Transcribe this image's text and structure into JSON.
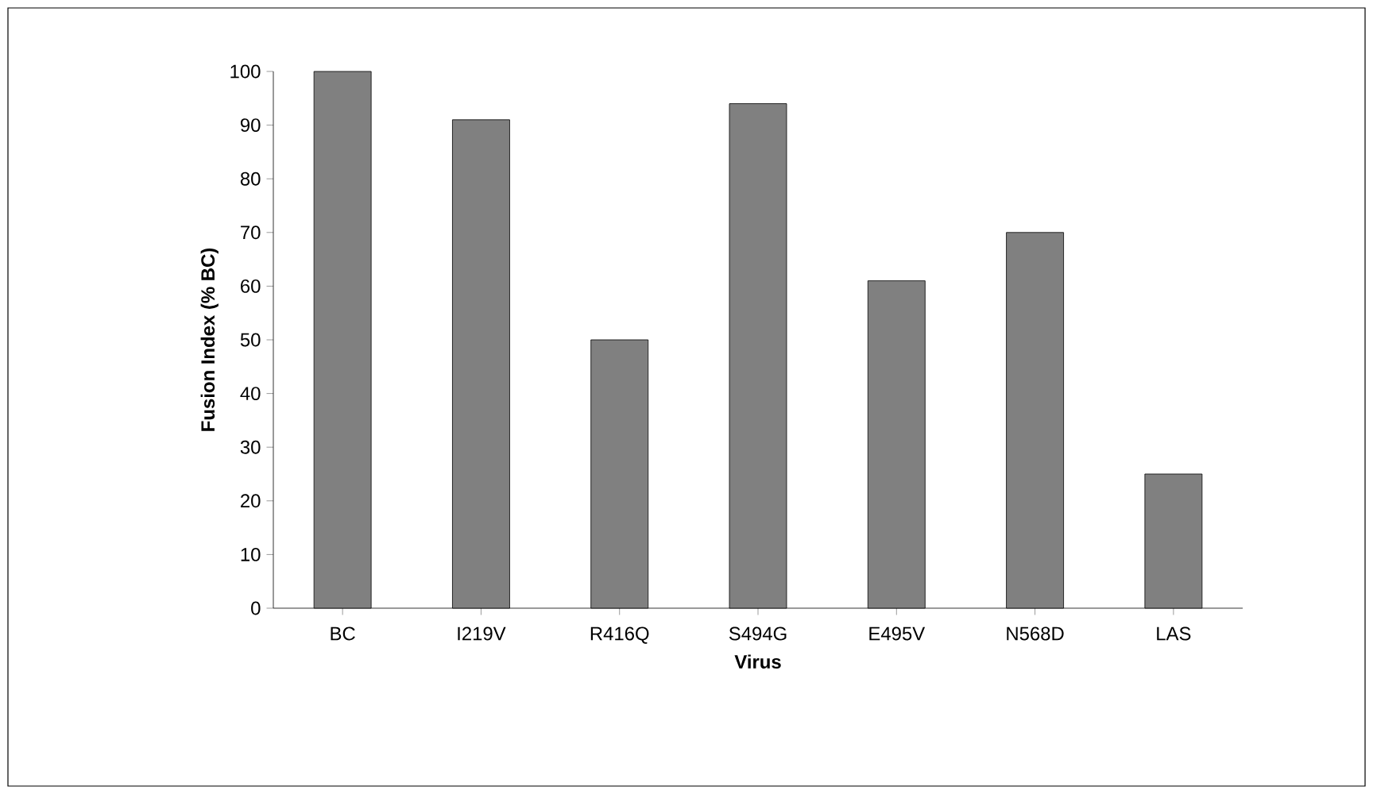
{
  "chart_data": {
    "type": "bar",
    "xlabel": "Virus",
    "ylabel": "Fusion Index (% BC)",
    "categories": [
      "BC",
      "I219V",
      "R416Q",
      "S494G",
      "E495V",
      "N568D",
      "LAS"
    ],
    "values": [
      100,
      91,
      50,
      94,
      61,
      70,
      25
    ],
    "color": "#808080",
    "ylim": [
      0,
      100
    ],
    "yticks": [
      0,
      10,
      20,
      30,
      40,
      50,
      60,
      70,
      80,
      90,
      100
    ]
  }
}
